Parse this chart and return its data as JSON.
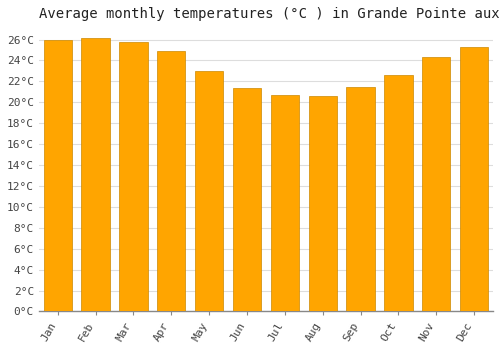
{
  "title": "Average monthly temperatures (°C ) in Grande Pointe aux Piments",
  "months": [
    "Jan",
    "Feb",
    "Mar",
    "Apr",
    "May",
    "Jun",
    "Jul",
    "Aug",
    "Sep",
    "Oct",
    "Nov",
    "Dec"
  ],
  "values": [
    26.0,
    26.1,
    25.8,
    24.9,
    23.0,
    21.4,
    20.7,
    20.6,
    21.5,
    22.6,
    24.3,
    25.3
  ],
  "bar_color": "#FFA500",
  "bar_edge_color": "#CC8800",
  "plot_bg_color": "#FFFFFF",
  "fig_bg_color": "#FFFFFF",
  "grid_color": "#DDDDDD",
  "ylim": [
    0,
    27
  ],
  "ytick_step": 2,
  "title_fontsize": 10,
  "tick_fontsize": 8,
  "font_family": "monospace"
}
